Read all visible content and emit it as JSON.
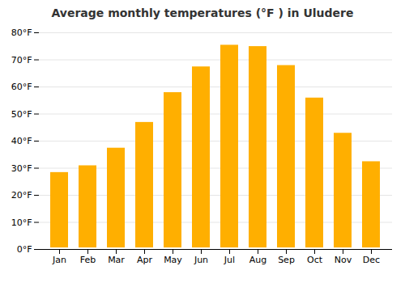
{
  "chart_data": {
    "type": "bar",
    "title": "Average monthly temperatures (°F ) in Uludere",
    "categories": [
      "Jan",
      "Feb",
      "Mar",
      "Apr",
      "May",
      "Jun",
      "Jul",
      "Aug",
      "Sep",
      "Oct",
      "Nov",
      "Dec"
    ],
    "values": [
      29,
      31.5,
      38,
      47.5,
      58.5,
      68,
      76,
      75.5,
      68.5,
      56.5,
      43.5,
      33
    ],
    "color": "#FFAF00",
    "ylim": [
      0,
      80
    ],
    "yticks": [
      {
        "value": 0,
        "label": "0°F"
      },
      {
        "value": 10,
        "label": "10°F"
      },
      {
        "value": 20,
        "label": "20°F"
      },
      {
        "value": 30,
        "label": "30°F"
      },
      {
        "value": 40,
        "label": "40°F"
      },
      {
        "value": 50,
        "label": "50°F"
      },
      {
        "value": 60,
        "label": "60°F"
      },
      {
        "value": 70,
        "label": "70°F"
      },
      {
        "value": 80,
        "label": "80°F"
      }
    ],
    "grid": true
  }
}
